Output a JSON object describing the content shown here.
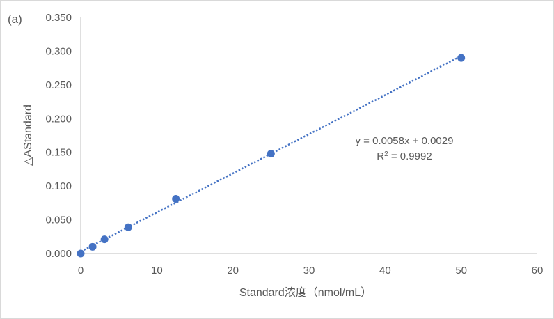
{
  "chart_data": {
    "type": "scatter",
    "panel_label": "(a)",
    "title": "",
    "xlabel": "Standard浓度（nmol/mL）",
    "ylabel": "△AStandard",
    "xlim": [
      0,
      60
    ],
    "ylim": [
      0,
      0.35
    ],
    "x_ticks": [
      0,
      10,
      20,
      30,
      40,
      50,
      60
    ],
    "x_tick_labels": [
      "0",
      "10",
      "20",
      "30",
      "40",
      "50",
      "60"
    ],
    "y_ticks": [
      0,
      0.05,
      0.1,
      0.15,
      0.2,
      0.25,
      0.3,
      0.35
    ],
    "y_tick_labels": [
      "0.000",
      "0.050",
      "0.100",
      "0.150",
      "0.200",
      "0.250",
      "0.300",
      "0.350"
    ],
    "grid": false,
    "series": [
      {
        "x": [
          0,
          1.5625,
          3.125,
          6.25,
          12.5,
          25,
          50
        ],
        "y": [
          0,
          0.01,
          0.021,
          0.039,
          0.081,
          0.148,
          0.29
        ],
        "color": "#4472c4"
      }
    ],
    "trendline": {
      "type": "linear",
      "slope": 0.0058,
      "intercept": 0.0029,
      "x_range": [
        0,
        50
      ],
      "style": "dotted",
      "color": "#4472c4",
      "equation": "y = 0.0058x + 0.0029",
      "r2_prefix": "R",
      "r2_sup": "2",
      "r2_value": " = 0.9992"
    }
  }
}
